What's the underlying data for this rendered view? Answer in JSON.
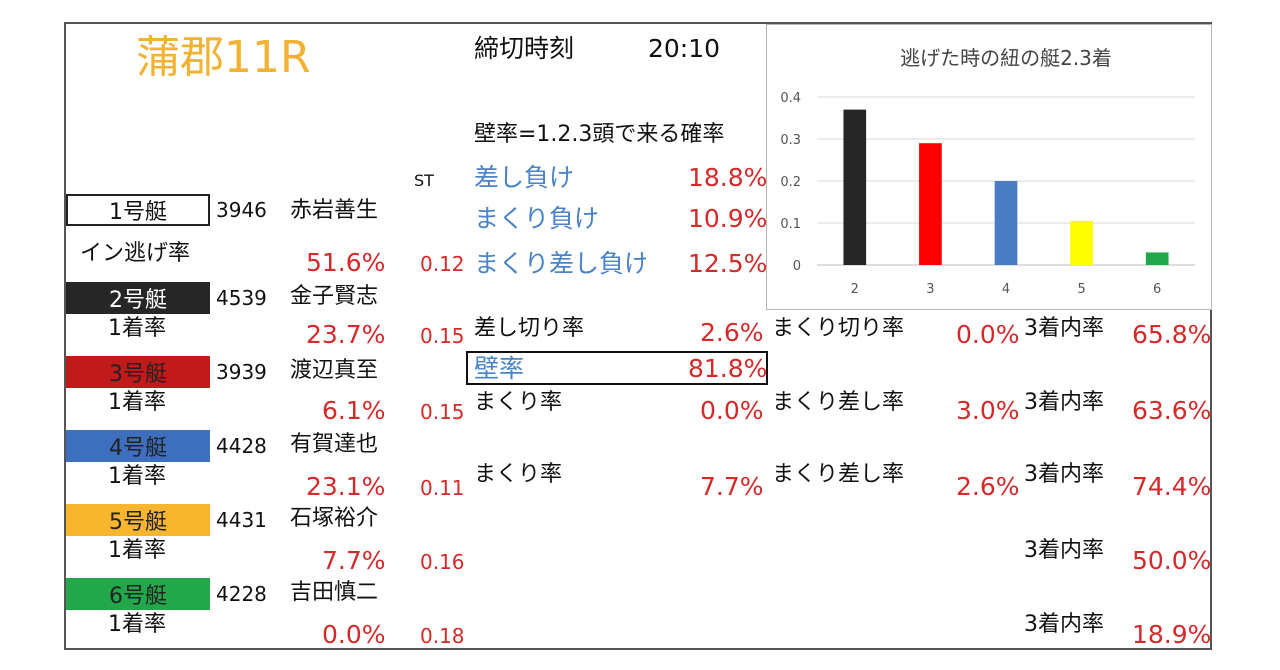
{
  "venue_race": "蒲郡11R",
  "deadline": {
    "label": "締切時刻",
    "time": "20:10"
  },
  "st_header": "ST",
  "wall_def": "壁率=1.2.3頭で来る確率",
  "loss_stats": [
    {
      "label": "差し負け",
      "value": "18.8%"
    },
    {
      "label": "まくり負け",
      "value": "10.9%"
    },
    {
      "label": "まくり差し負け",
      "value": "12.5%"
    }
  ],
  "boats": [
    {
      "name": "1号艇",
      "id": "3946",
      "racer": "赤岩善生",
      "rate_label": "イン逃げ率",
      "rate": "51.6%",
      "st": "0.12",
      "color": "#ffffff"
    },
    {
      "name": "2号艇",
      "id": "4539",
      "racer": "金子賢志",
      "rate_label": "1着率",
      "rate": "23.7%",
      "st": "0.15",
      "color": "#262626"
    },
    {
      "name": "3号艇",
      "id": "3939",
      "racer": "渡辺真至",
      "rate_label": "1着率",
      "rate": "6.1%",
      "st": "0.15",
      "color": "#c11a1a"
    },
    {
      "name": "4号艇",
      "id": "4428",
      "racer": "有賀達也",
      "rate_label": "1着率",
      "rate": "23.1%",
      "st": "0.11",
      "color": "#3d6fbe"
    },
    {
      "name": "5号艇",
      "id": "4431",
      "racer": "石塚裕介",
      "rate_label": "1着率",
      "rate": "7.7%",
      "st": "0.16",
      "color": "#f7b62e"
    },
    {
      "name": "6号艇",
      "id": "4228",
      "racer": "吉田慎二",
      "rate_label": "1着率",
      "rate": "0.0%",
      "st": "0.18",
      "color": "#22a84a"
    }
  ],
  "boat2_stats": {
    "sashikiri_label": "差し切り率",
    "sashikiri": "2.6%",
    "makurikiri_label": "まくり切り率",
    "makurikiri": "0.0%",
    "top3_label": "3着内率",
    "top3": "65.8%"
  },
  "wall": {
    "label": "壁率",
    "value": "81.8%"
  },
  "boat3_stats": {
    "makuri_label": "まくり率",
    "makuri": "0.0%",
    "makurisashi_label": "まくり差し率",
    "makurisashi": "3.0%",
    "top3_label": "3着内率",
    "top3": "63.6%"
  },
  "boat4_stats": {
    "makuri_label": "まくり率",
    "makuri": "7.7%",
    "makurisashi_label": "まくり差し率",
    "makurisashi": "2.6%",
    "top3_label": "3着内率",
    "top3": "74.4%"
  },
  "boat5_stats": {
    "top3_label": "3着内率",
    "top3": "50.0%"
  },
  "boat6_stats": {
    "top3_label": "3着内率",
    "top3": "18.9%"
  },
  "chart_data": {
    "type": "bar",
    "title": "逃げた時の紐の艇2.3着",
    "categories": [
      "2",
      "3",
      "4",
      "5",
      "6"
    ],
    "values": [
      0.37,
      0.29,
      0.2,
      0.105,
      0.03
    ],
    "colors": [
      "#262626",
      "#ff0000",
      "#4a7cc4",
      "#ffff00",
      "#22a84a"
    ],
    "yticks": [
      "0",
      "0.1",
      "0.2",
      "0.3",
      "0.4"
    ],
    "ylim": [
      0,
      0.4
    ],
    "grid": true,
    "xlabel": "",
    "ylabel": ""
  }
}
